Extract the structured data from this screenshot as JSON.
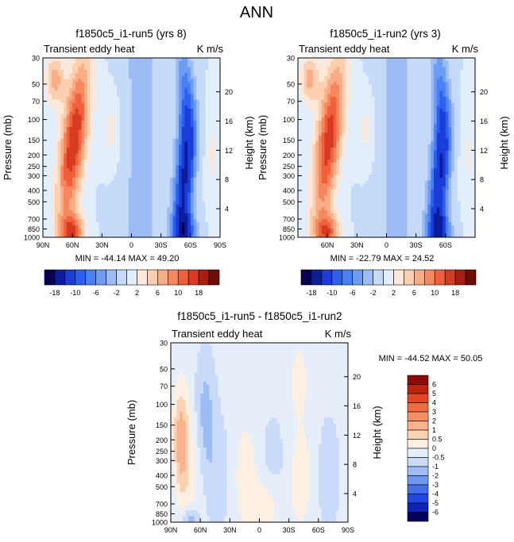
{
  "page_title": "ANN",
  "colors": {
    "abs": [
      "#08004f",
      "#0d1c9c",
      "#1a3dd8",
      "#2d5ff0",
      "#4a80f2",
      "#6d9cf4",
      "#9dbcf6",
      "#c5daf8",
      "#e3eefb",
      "#fde9dc",
      "#fbcfb0",
      "#f9ad86",
      "#f6875e",
      "#f0603d",
      "#d63b21",
      "#a61f11",
      "#6e0c07"
    ],
    "diff": [
      "#05005e",
      "#0f23b6",
      "#2148e6",
      "#4470ef",
      "#6f97f2",
      "#9fbcf5",
      "#c9dbf8",
      "#e6eff9",
      "#fdefe1",
      "#fbd2b4",
      "#f9b28d",
      "#f68f64",
      "#f26b40",
      "#e64523",
      "#c0230d",
      "#8e0a04"
    ]
  },
  "chart_data": [
    {
      "type": "heatmap",
      "title": "f1850c5_i1-run5 (yrs 8)",
      "subtitle_left": "Transient eddy heat",
      "subtitle_right": "K m/s",
      "ylabel": "Pressure (mb)",
      "ylabel_right": "Height (km)",
      "x_ticks": [
        "90N",
        "60N",
        "30N",
        "0",
        "30S",
        "60S",
        "90S"
      ],
      "y_ticks": [
        "30",
        "50",
        "70",
        "100",
        "150",
        "200",
        "250",
        "300",
        "400",
        "500",
        "700",
        "850",
        "1000"
      ],
      "y_right_ticks": [
        "20",
        "16",
        "12",
        "8",
        "4"
      ],
      "stats": "MIN = -44.14   MAX =  49.20",
      "colorbar_labels": [
        "-18",
        "-10",
        "-6",
        "-2",
        "2",
        "6",
        "10",
        "18"
      ],
      "ylim": [
        1000,
        30
      ],
      "xlim": [
        "90N",
        "90S"
      ]
    },
    {
      "type": "heatmap",
      "title": "f1850c5_i1-run2 (yrs 3)",
      "subtitle_left": "Transient eddy heat",
      "subtitle_right": "K m/s",
      "ylabel": "Pressure (mb)",
      "ylabel_right": "Height (km)",
      "x_ticks": [
        "60N",
        "30N",
        "0",
        "30S",
        "60S"
      ],
      "y_ticks": [
        "30",
        "50",
        "70",
        "100",
        "150",
        "200",
        "250",
        "300",
        "400",
        "500",
        "700",
        "850",
        "1000"
      ],
      "y_right_ticks": [
        "20",
        "16",
        "12",
        "8",
        "4"
      ],
      "stats": "MIN = -22.79   MAX =  24.52",
      "colorbar_labels": [
        "-18",
        "-10",
        "-6",
        "-2",
        "2",
        "6",
        "10",
        "18"
      ],
      "ylim": [
        1000,
        30
      ],
      "xlim": [
        "90N",
        "90S"
      ]
    },
    {
      "type": "heatmap",
      "title": "f1850c5_i1-run5 - f1850c5_i1-run2",
      "subtitle_left": "Transient eddy heat",
      "subtitle_right": "K m/s",
      "ylabel": "Pressure (mb)",
      "ylabel_right": "Height (km)",
      "x_ticks": [
        "90N",
        "60N",
        "30N",
        "0",
        "30S",
        "60S",
        "90S"
      ],
      "y_ticks": [
        "30",
        "50",
        "70",
        "100",
        "150",
        "200",
        "250",
        "300",
        "400",
        "500",
        "700",
        "850",
        "1000"
      ],
      "y_right_ticks": [
        "20",
        "16",
        "12",
        "8",
        "4"
      ],
      "stats": "MIN = -44.52   MAX =  50.05",
      "colorbar_labels": [
        "6",
        "5",
        "4",
        "3",
        "2",
        "1",
        "0.5",
        "0",
        "-0.5",
        "-1",
        "-2",
        "-3",
        "-4",
        "-5",
        "-6"
      ],
      "ylim": [
        1000,
        30
      ],
      "xlim": [
        "90N",
        "90S"
      ]
    }
  ]
}
